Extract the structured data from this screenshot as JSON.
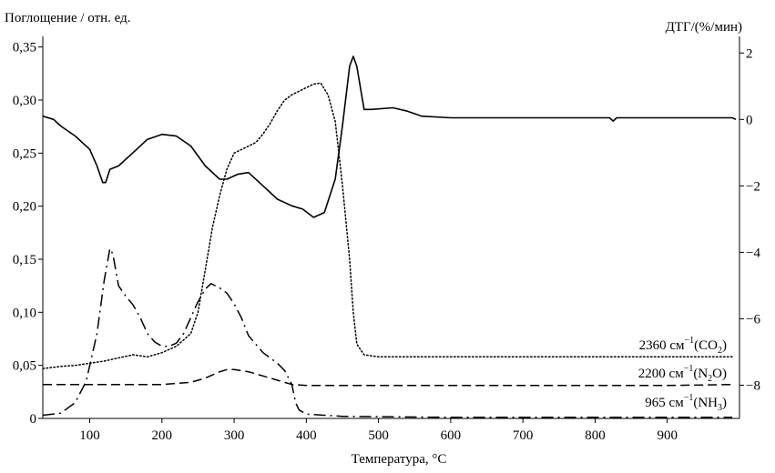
{
  "chart_data": {
    "type": "line",
    "ylabel": "Поглощение / отн. ед.",
    "y2label": "ДТГ/(%/мин)",
    "xlabel": "Температура, °C",
    "xlim": [
      35,
      1000
    ],
    "ylim": [
      0,
      0.36
    ],
    "y2lim": [
      -9,
      2.5
    ],
    "x_ticks": [
      "100",
      "200",
      "300",
      "400",
      "500",
      "600",
      "700",
      "800",
      "900"
    ],
    "y_ticks": [
      "0",
      "0,05",
      "0,10",
      "0,15",
      "0,20",
      "0,25",
      "0,30",
      "0,35"
    ],
    "y2_ticks": [
      "2",
      "0",
      "−2",
      "−4",
      "−6",
      "−8"
    ],
    "grid": false,
    "series": [
      {
        "name": "ДТГ",
        "axis": "right",
        "style": "solid",
        "points": [
          [
            35,
            0.1
          ],
          [
            50,
            0
          ],
          [
            60,
            -0.2
          ],
          [
            80,
            -0.5
          ],
          [
            100,
            -0.9
          ],
          [
            110,
            -1.4
          ],
          [
            118,
            -1.9
          ],
          [
            122,
            -1.9
          ],
          [
            128,
            -1.5
          ],
          [
            140,
            -1.4
          ],
          [
            160,
            -1.0
          ],
          [
            180,
            -0.6
          ],
          [
            200,
            -0.45
          ],
          [
            220,
            -0.5
          ],
          [
            240,
            -0.8
          ],
          [
            260,
            -1.4
          ],
          [
            280,
            -1.8
          ],
          [
            290,
            -1.8
          ],
          [
            305,
            -1.65
          ],
          [
            320,
            -1.6
          ],
          [
            340,
            -2.0
          ],
          [
            360,
            -2.4
          ],
          [
            380,
            -2.6
          ],
          [
            395,
            -2.7
          ],
          [
            410,
            -2.95
          ],
          [
            425,
            -2.8
          ],
          [
            440,
            -1.8
          ],
          [
            450,
            -0.2
          ],
          [
            460,
            1.6
          ],
          [
            465,
            1.9
          ],
          [
            470,
            1.6
          ],
          [
            480,
            0.3
          ],
          [
            490,
            0.3
          ],
          [
            520,
            0.35
          ],
          [
            540,
            0.25
          ],
          [
            560,
            0.1
          ],
          [
            600,
            0.05
          ],
          [
            700,
            0.05
          ],
          [
            800,
            0.05
          ],
          [
            820,
            0.05
          ],
          [
            825,
            -0.05
          ],
          [
            830,
            0.05
          ],
          [
            900,
            0.05
          ],
          [
            990,
            0.05
          ],
          [
            995,
            0
          ]
        ]
      },
      {
        "name": "2360 см⁻¹ (CO₂)",
        "axis": "left",
        "style": "dotted",
        "points": [
          [
            35,
            0.047
          ],
          [
            60,
            0.049
          ],
          [
            80,
            0.05
          ],
          [
            100,
            0.052
          ],
          [
            120,
            0.054
          ],
          [
            140,
            0.057
          ],
          [
            160,
            0.06
          ],
          [
            180,
            0.058
          ],
          [
            200,
            0.062
          ],
          [
            220,
            0.068
          ],
          [
            240,
            0.08
          ],
          [
            250,
            0.1
          ],
          [
            260,
            0.14
          ],
          [
            270,
            0.18
          ],
          [
            280,
            0.21
          ],
          [
            290,
            0.235
          ],
          [
            300,
            0.25
          ],
          [
            315,
            0.255
          ],
          [
            330,
            0.26
          ],
          [
            340,
            0.268
          ],
          [
            350,
            0.278
          ],
          [
            360,
            0.29
          ],
          [
            370,
            0.3
          ],
          [
            380,
            0.305
          ],
          [
            395,
            0.31
          ],
          [
            410,
            0.315
          ],
          [
            420,
            0.316
          ],
          [
            430,
            0.305
          ],
          [
            440,
            0.28
          ],
          [
            450,
            0.22
          ],
          [
            460,
            0.15
          ],
          [
            465,
            0.1
          ],
          [
            470,
            0.07
          ],
          [
            480,
            0.06
          ],
          [
            500,
            0.058
          ],
          [
            600,
            0.058
          ],
          [
            700,
            0.058
          ],
          [
            800,
            0.058
          ],
          [
            900,
            0.058
          ],
          [
            990,
            0.058
          ]
        ]
      },
      {
        "name": "2200 см⁻¹ (N₂O)",
        "axis": "left",
        "style": "dashed",
        "points": [
          [
            35,
            0.032
          ],
          [
            100,
            0.032
          ],
          [
            200,
            0.032
          ],
          [
            240,
            0.034
          ],
          [
            260,
            0.038
          ],
          [
            280,
            0.044
          ],
          [
            290,
            0.046
          ],
          [
            300,
            0.046
          ],
          [
            320,
            0.044
          ],
          [
            340,
            0.04
          ],
          [
            360,
            0.036
          ],
          [
            380,
            0.032
          ],
          [
            400,
            0.031
          ],
          [
            500,
            0.031
          ],
          [
            700,
            0.031
          ],
          [
            900,
            0.031
          ],
          [
            990,
            0.032
          ]
        ]
      },
      {
        "name": "965 см⁻¹ (NH₃)",
        "axis": "left",
        "style": "dashdot",
        "points": [
          [
            35,
            0.003
          ],
          [
            60,
            0.005
          ],
          [
            80,
            0.015
          ],
          [
            95,
            0.035
          ],
          [
            110,
            0.08
          ],
          [
            120,
            0.13
          ],
          [
            128,
            0.16
          ],
          [
            132,
            0.155
          ],
          [
            140,
            0.125
          ],
          [
            150,
            0.115
          ],
          [
            160,
            0.107
          ],
          [
            170,
            0.095
          ],
          [
            180,
            0.08
          ],
          [
            190,
            0.072
          ],
          [
            200,
            0.068
          ],
          [
            210,
            0.068
          ],
          [
            220,
            0.071
          ],
          [
            230,
            0.08
          ],
          [
            240,
            0.095
          ],
          [
            250,
            0.11
          ],
          [
            260,
            0.122
          ],
          [
            268,
            0.127
          ],
          [
            280,
            0.123
          ],
          [
            290,
            0.118
          ],
          [
            300,
            0.108
          ],
          [
            310,
            0.095
          ],
          [
            320,
            0.078
          ],
          [
            340,
            0.062
          ],
          [
            360,
            0.052
          ],
          [
            370,
            0.045
          ],
          [
            380,
            0.032
          ],
          [
            385,
            0.015
          ],
          [
            390,
            0.008
          ],
          [
            400,
            0.004
          ],
          [
            450,
            0.002
          ],
          [
            600,
            0.001
          ],
          [
            800,
            0.001
          ],
          [
            990,
            0.001
          ]
        ]
      }
    ],
    "annotations": [
      {
        "base": "2360 см",
        "sup": "−1",
        "mid": "(CO",
        "sub": "2",
        "tail": ")"
      },
      {
        "base": "2200 см",
        "sup": "−1",
        "mid": "(N",
        "sub": "2",
        "tail": "O)"
      },
      {
        "base": "965 см",
        "sup": "−1",
        "mid": "(NH",
        "sub": "3",
        "tail": ")"
      }
    ]
  }
}
